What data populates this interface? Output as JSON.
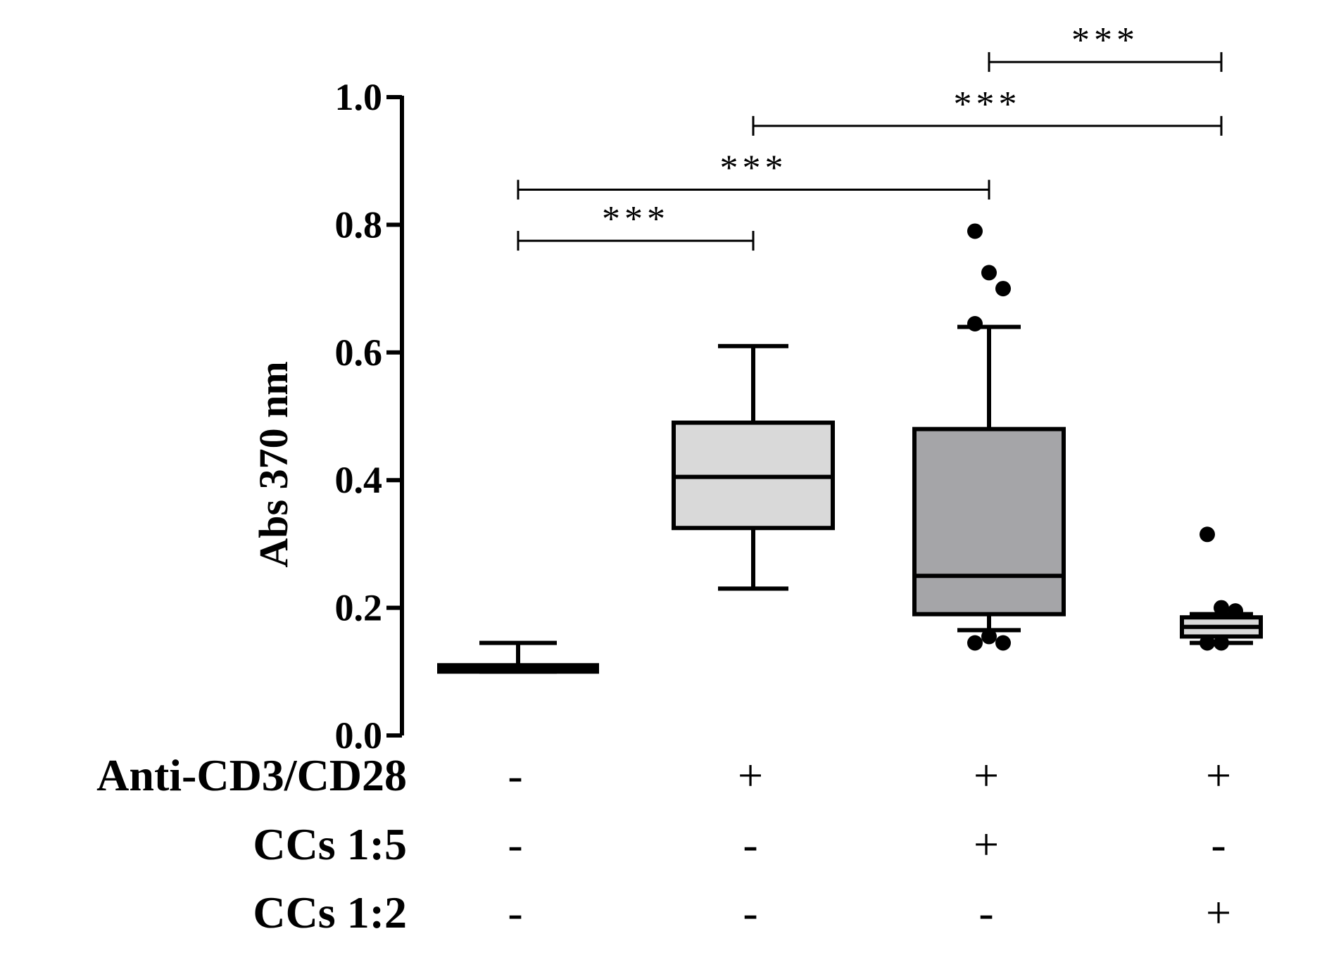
{
  "chart_data": {
    "type": "box",
    "ylabel": "Abs 370 nm",
    "ylim": [
      0,
      1.0
    ],
    "yticks": [
      "0.0",
      "0.2",
      "0.4",
      "0.6",
      "0.8",
      "1.0"
    ],
    "grid": false,
    "groups": [
      {
        "conditions": [
          "-",
          "-",
          "-"
        ],
        "color": "#d9d9d9",
        "whisker_low": 0.1,
        "q1": 0.1,
        "median": 0.105,
        "q3": 0.11,
        "whisker_high": 0.145,
        "outliers": []
      },
      {
        "conditions": [
          "+",
          "-",
          "-"
        ],
        "color": "#d9d9d9",
        "whisker_low": 0.23,
        "q1": 0.325,
        "median": 0.405,
        "q3": 0.49,
        "whisker_high": 0.61,
        "outliers": []
      },
      {
        "conditions": [
          "+",
          "+",
          "-"
        ],
        "color": "#a5a5a8",
        "whisker_low": 0.165,
        "q1": 0.19,
        "median": 0.25,
        "q3": 0.48,
        "whisker_high": 0.64,
        "outliers": [
          0.79,
          0.725,
          0.7,
          0.645,
          0.155,
          0.145,
          0.145
        ]
      },
      {
        "conditions": [
          "+",
          "-",
          "+"
        ],
        "color": "#d9d9d9",
        "whisker_low": 0.145,
        "q1": 0.155,
        "median": 0.17,
        "q3": 0.185,
        "whisker_high": 0.19,
        "outliers": [
          0.315,
          0.2,
          0.195,
          0.145,
          0.145
        ]
      }
    ],
    "condition_rows": [
      "Anti-CD3/CD28",
      "CCs 1:5",
      "CCs 1:2"
    ],
    "significance": [
      {
        "from": 0,
        "to": 1,
        "y": 0.775,
        "label": "***"
      },
      {
        "from": 0,
        "to": 2,
        "y": 0.855,
        "label": "***"
      },
      {
        "from": 1,
        "to": 3,
        "y": 0.955,
        "label": "***"
      },
      {
        "from": 2,
        "to": 3,
        "y": 1.055,
        "label": "***"
      }
    ]
  }
}
